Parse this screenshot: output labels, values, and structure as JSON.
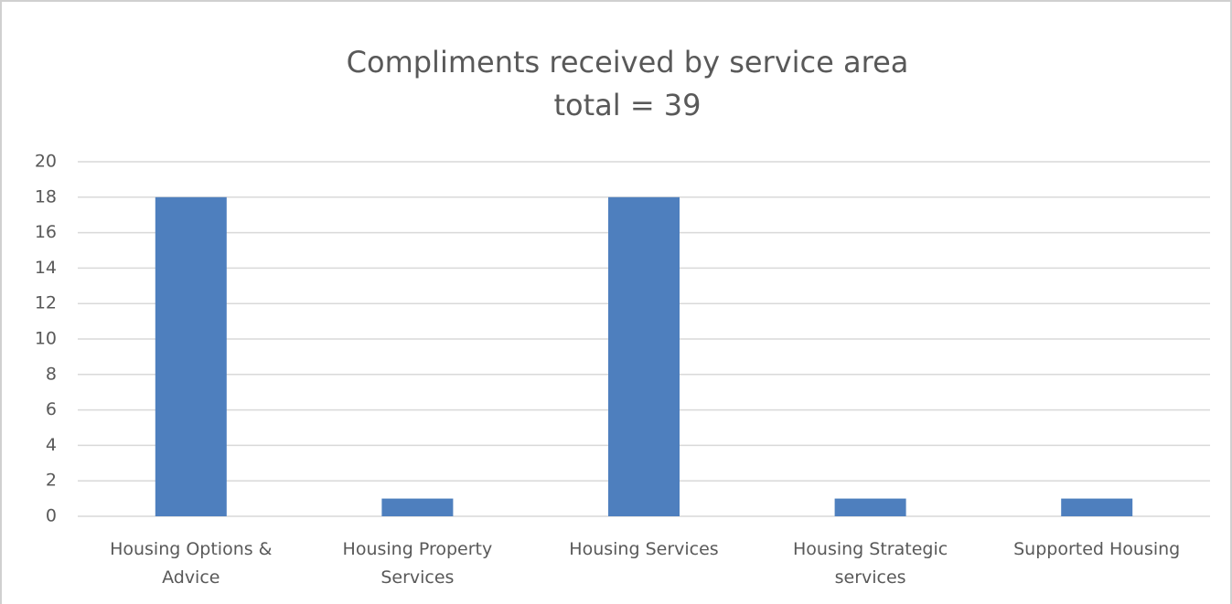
{
  "chart_data": {
    "type": "bar",
    "title": "Compliments received by service area",
    "subtitle": "total = 39",
    "categories": [
      "Housing Options & Advice",
      "Housing Property Services",
      "Housing Services",
      "Housing Strategic services",
      "Supported Housing"
    ],
    "values": [
      18,
      1,
      18,
      1,
      1
    ],
    "color": "#4e7fbe",
    "ylim": [
      0,
      20
    ],
    "yticks": [
      0,
      2,
      4,
      6,
      8,
      10,
      12,
      14,
      16,
      18,
      20
    ],
    "grid": true
  }
}
